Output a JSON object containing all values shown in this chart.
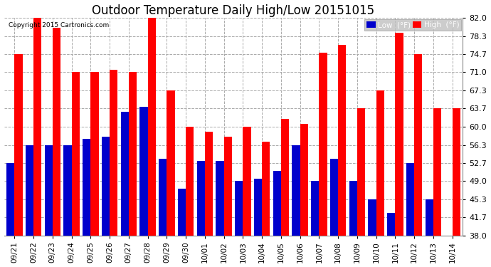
{
  "title": "Outdoor Temperature Daily High/Low 20151015",
  "copyright": "Copyright 2015 Cartronics.com",
  "categories": [
    "09/21",
    "09/22",
    "09/23",
    "09/24",
    "09/25",
    "09/26",
    "09/27",
    "09/28",
    "09/29",
    "09/30",
    "10/01",
    "10/02",
    "10/03",
    "10/04",
    "10/05",
    "10/06",
    "10/07",
    "10/08",
    "10/09",
    "10/10",
    "10/11",
    "10/12",
    "10/13",
    "10/14"
  ],
  "highs": [
    74.7,
    82.0,
    80.0,
    71.0,
    71.0,
    71.5,
    71.0,
    82.0,
    67.3,
    60.0,
    59.0,
    58.0,
    60.0,
    57.0,
    61.5,
    60.5,
    75.0,
    76.5,
    63.7,
    67.3,
    79.0,
    74.7,
    63.7,
    63.7
  ],
  "lows": [
    52.7,
    56.3,
    56.3,
    56.3,
    57.5,
    58.0,
    63.0,
    64.0,
    53.5,
    47.5,
    53.0,
    53.0,
    49.0,
    49.5,
    51.0,
    56.3,
    49.0,
    53.5,
    49.0,
    45.3,
    42.5,
    52.7,
    45.3,
    38.0
  ],
  "low_color": "#0000cc",
  "high_color": "#ff0000",
  "bg_color": "#ffffff",
  "grid_color": "#aaaaaa",
  "yticks": [
    38.0,
    41.7,
    45.3,
    49.0,
    52.7,
    56.3,
    60.0,
    63.7,
    67.3,
    71.0,
    74.7,
    78.3,
    82.0
  ],
  "ylim": [
    38.0,
    82.0
  ],
  "ybase": 38.0,
  "title_fontsize": 12,
  "legend_low_label": "Low  (°F)",
  "legend_high_label": "High  (°F)"
}
